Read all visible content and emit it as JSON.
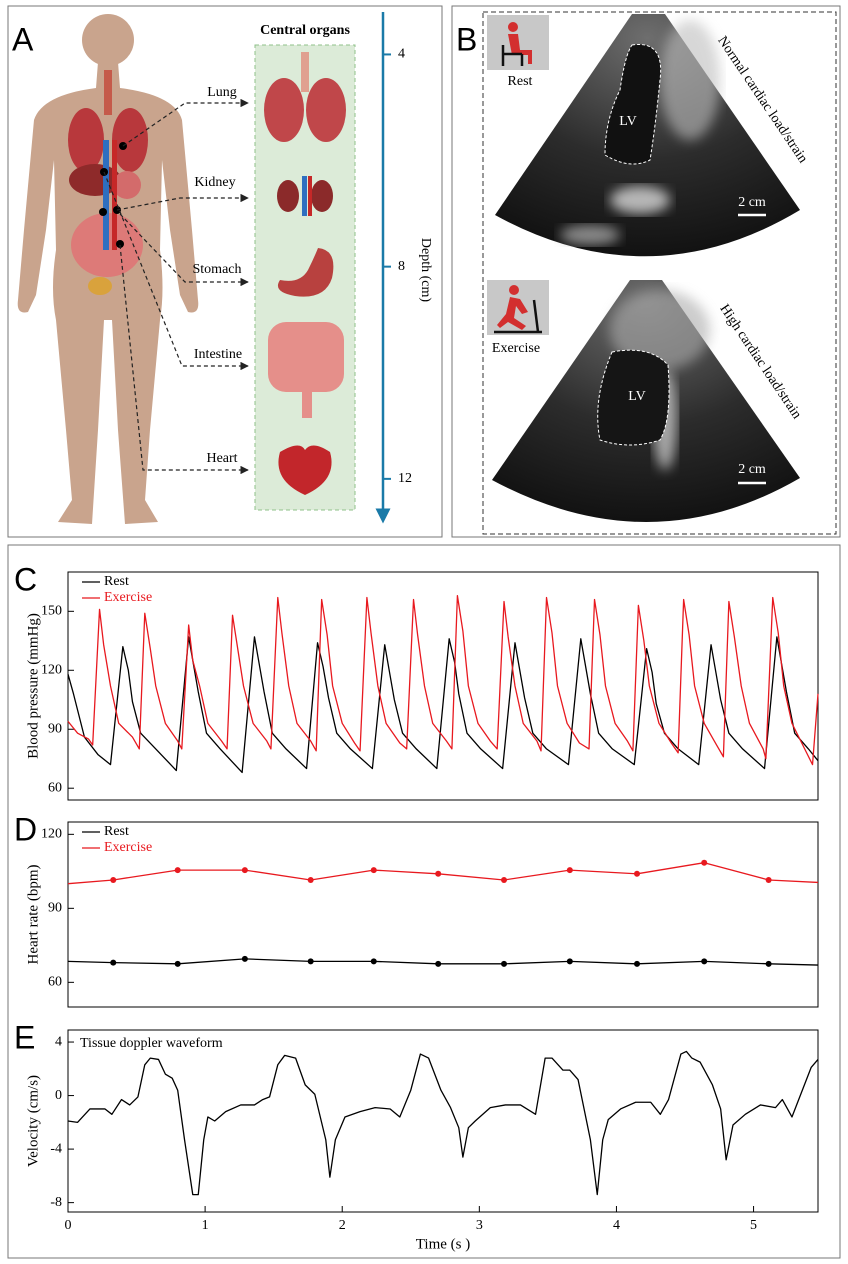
{
  "panel_a": {
    "label": "A",
    "title": "Central organs",
    "organs": [
      "Lung",
      "Kidney",
      "Stomach",
      "Intestine",
      "Heart"
    ],
    "depth_axis": {
      "label": "Depth  (cm)",
      "ylim": [
        3.2,
        12.7
      ],
      "ticks": [
        4,
        8,
        12
      ]
    }
  },
  "panel_b": {
    "label": "B",
    "images": [
      {
        "condition": "Rest",
        "caption": "Normal cardiac load/strain",
        "chamber": "LV",
        "scale_bar": "2 cm"
      },
      {
        "condition": "Exercise",
        "caption": "High cardiac load/strain",
        "chamber": "LV",
        "scale_bar": "2 cm"
      }
    ]
  },
  "chart_data": [
    {
      "type": "line",
      "label": "C",
      "ylabel": "Blood pressure (mmHg)",
      "xlim": [
        0,
        5.47
      ],
      "ylim": [
        54,
        170
      ],
      "yticks": [
        60,
        90,
        120,
        150
      ],
      "legend": "upper left",
      "series": [
        {
          "name": "Rest",
          "color": "#000000",
          "x": [
            0,
            0.04,
            0.12,
            0.22,
            0.31,
            0.4,
            0.44,
            0.47,
            0.53,
            0.64,
            0.79,
            0.88,
            0.91,
            0.95,
            1.01,
            1.11,
            1.27,
            1.36,
            1.39,
            1.43,
            1.49,
            1.59,
            1.74,
            1.82,
            1.86,
            1.9,
            1.96,
            2.06,
            2.22,
            2.31,
            2.34,
            2.38,
            2.44,
            2.54,
            2.69,
            2.78,
            2.82,
            2.85,
            2.91,
            3.01,
            3.17,
            3.26,
            3.29,
            3.33,
            3.39,
            3.49,
            3.65,
            3.74,
            3.77,
            3.81,
            3.87,
            3.97,
            4.13,
            4.22,
            4.26,
            4.29,
            4.35,
            4.45,
            4.6,
            4.69,
            4.72,
            4.76,
            4.82,
            4.92,
            5.08,
            5.17,
            5.2,
            5.24,
            5.3,
            5.4,
            5.47
          ],
          "values": [
            118,
            108,
            86,
            77,
            72,
            132,
            120,
            104,
            88,
            80,
            69,
            137,
            125,
            109,
            88,
            80,
            68,
            137,
            125,
            109,
            88,
            80,
            70,
            134,
            122,
            106,
            88,
            80,
            70,
            133,
            121,
            105,
            88,
            80,
            70,
            136,
            124,
            108,
            88,
            80,
            70,
            134,
            122,
            106,
            88,
            80,
            72,
            136,
            124,
            108,
            88,
            80,
            72,
            131,
            119,
            103,
            88,
            80,
            72,
            133,
            121,
            105,
            88,
            80,
            70,
            137,
            125,
            109,
            88,
            80,
            74
          ]
        },
        {
          "name": "Exercise",
          "color": "#e8191f",
          "x": [
            0,
            0.07,
            0.15,
            0.18,
            0.23,
            0.26,
            0.31,
            0.37,
            0.47,
            0.52,
            0.56,
            0.6,
            0.64,
            0.71,
            0.8,
            0.83,
            0.88,
            0.91,
            0.96,
            1.02,
            1.12,
            1.16,
            1.2,
            1.24,
            1.28,
            1.35,
            1.45,
            1.48,
            1.53,
            1.56,
            1.61,
            1.67,
            1.77,
            1.81,
            1.85,
            1.89,
            1.93,
            2.0,
            2.09,
            2.13,
            2.18,
            2.21,
            2.26,
            2.32,
            2.42,
            2.47,
            2.52,
            2.55,
            2.6,
            2.66,
            2.76,
            2.8,
            2.84,
            2.88,
            2.92,
            2.99,
            3.08,
            3.13,
            3.18,
            3.21,
            3.26,
            3.32,
            3.42,
            3.45,
            3.49,
            3.53,
            3.57,
            3.64,
            3.73,
            3.8,
            3.84,
            3.88,
            3.92,
            3.99,
            4.08,
            4.12,
            4.16,
            4.2,
            4.24,
            4.31,
            4.4,
            4.45,
            4.49,
            4.53,
            4.57,
            4.64,
            4.73,
            4.78,
            4.82,
            4.86,
            4.91,
            4.97,
            5.07,
            5.09,
            5.14,
            5.18,
            5.22,
            5.28,
            5.38,
            5.43,
            5.47
          ],
          "values": [
            94,
            88,
            85,
            82,
            151,
            133,
            112,
            93,
            86,
            80,
            149,
            131,
            112,
            93,
            84,
            80,
            143,
            125,
            112,
            93,
            84,
            80,
            148,
            130,
            112,
            93,
            84,
            80,
            157,
            139,
            112,
            93,
            84,
            79,
            156,
            138,
            112,
            93,
            83,
            79,
            157,
            139,
            112,
            93,
            83,
            80,
            156,
            138,
            112,
            93,
            84,
            80,
            158,
            140,
            112,
            93,
            84,
            80,
            155,
            137,
            112,
            93,
            84,
            79,
            157,
            139,
            112,
            93,
            83,
            80,
            156,
            138,
            112,
            93,
            84,
            79,
            153,
            135,
            112,
            93,
            83,
            78,
            156,
            138,
            112,
            93,
            82,
            76,
            155,
            137,
            112,
            93,
            80,
            75,
            157,
            139,
            112,
            93,
            79,
            72,
            108
          ]
        }
      ]
    },
    {
      "type": "line",
      "label": "D",
      "ylabel": "Heart rate (bpm)",
      "xlim": [
        0,
        5.47
      ],
      "ylim": [
        50,
        125
      ],
      "yticks": [
        60,
        90,
        120
      ],
      "legend": "upper left",
      "markers": true,
      "x": [
        0,
        0.33,
        0.8,
        1.29,
        1.77,
        2.23,
        2.7,
        3.18,
        3.66,
        4.15,
        4.64,
        5.11,
        5.47
      ],
      "series": [
        {
          "name": "Rest",
          "color": "#000000",
          "values": [
            68.5,
            68,
            67.5,
            69.5,
            68.5,
            68.5,
            67.5,
            67.5,
            68.5,
            67.5,
            68.5,
            67.5,
            67
          ]
        },
        {
          "name": "Exercise",
          "color": "#e8191f",
          "values": [
            100,
            101.5,
            105.5,
            105.5,
            101.5,
            105.5,
            104,
            101.5,
            105.5,
            104,
            108.5,
            101.5,
            100.5
          ]
        }
      ]
    },
    {
      "type": "line",
      "label": "E",
      "title": "Tissue doppler waveform",
      "ylabel": "Velocity (cm/s)",
      "xlabel": "Time (s )",
      "xlim": [
        0,
        5.47
      ],
      "ylim": [
        -8.7,
        4.9
      ],
      "xticks": [
        0,
        1,
        2,
        3,
        4,
        5
      ],
      "yticks": [
        -8,
        -4,
        0,
        4
      ],
      "x": [
        0,
        0.07,
        0.16,
        0.27,
        0.32,
        0.39,
        0.45,
        0.51,
        0.56,
        0.6,
        0.66,
        0.71,
        0.76,
        0.8,
        0.85,
        0.91,
        0.95,
        0.99,
        1.02,
        1.07,
        1.15,
        1.26,
        1.36,
        1.42,
        1.47,
        1.53,
        1.58,
        1.66,
        1.73,
        1.8,
        1.88,
        1.91,
        1.95,
        2.02,
        2.13,
        2.24,
        2.35,
        2.42,
        2.5,
        2.57,
        2.63,
        2.72,
        2.79,
        2.85,
        2.88,
        2.92,
        2.97,
        3.08,
        3.19,
        3.3,
        3.41,
        3.48,
        3.53,
        3.61,
        3.66,
        3.72,
        3.81,
        3.86,
        3.9,
        3.94,
        4.03,
        4.14,
        4.25,
        4.32,
        4.38,
        4.47,
        4.51,
        4.55,
        4.61,
        4.7,
        4.76,
        4.8,
        4.85,
        4.94,
        5.05,
        5.16,
        5.21,
        5.28,
        5.42,
        5.47
      ],
      "series": [
        {
          "color": "#000000",
          "values": [
            -1.9,
            -2.0,
            -1.0,
            -1.0,
            -1.4,
            -0.3,
            -0.7,
            -0.1,
            2.3,
            2.8,
            2.7,
            1.6,
            1.3,
            0.4,
            -3.3,
            -7.4,
            -7.4,
            -3.3,
            -1.6,
            -1.9,
            -1.2,
            -0.7,
            -0.7,
            -0.3,
            -0.1,
            2.3,
            3.0,
            2.8,
            0.8,
            0.1,
            -3.3,
            -6.1,
            -3.3,
            -1.6,
            -1.2,
            -0.9,
            -1.0,
            -1.6,
            0.4,
            3.1,
            2.8,
            0.4,
            -0.9,
            -2.4,
            -4.6,
            -2.4,
            -1.9,
            -0.9,
            -0.7,
            -0.7,
            -1.4,
            2.8,
            2.8,
            1.9,
            1.9,
            1.2,
            -3.3,
            -7.4,
            -3.3,
            -1.8,
            -1.0,
            -0.5,
            -0.5,
            -1.4,
            -0.3,
            3.1,
            3.3,
            2.8,
            2.5,
            0.8,
            -1.0,
            -4.8,
            -2.2,
            -1.4,
            -0.7,
            -0.9,
            -0.3,
            -1.6,
            2.1,
            2.7
          ]
        }
      ]
    }
  ]
}
